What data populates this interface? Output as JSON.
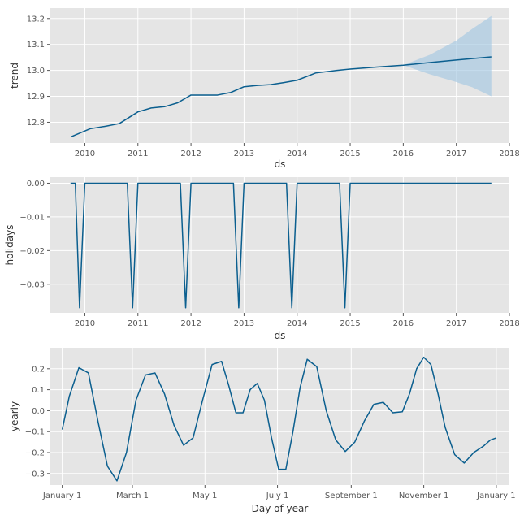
{
  "chart_data": [
    {
      "type": "line",
      "ylabel": "trend",
      "xlabel": "ds",
      "xlim": [
        2009.35,
        2018.0
      ],
      "ylim": [
        12.72,
        13.24
      ],
      "x_ticks": [
        2010,
        2011,
        2012,
        2013,
        2014,
        2015,
        2016,
        2017,
        2018
      ],
      "x_tick_labels": [
        "2010",
        "2011",
        "2012",
        "2013",
        "2014",
        "2015",
        "2016",
        "2017",
        "2018"
      ],
      "y_ticks": [
        12.8,
        12.9,
        13.0,
        13.1,
        13.2
      ],
      "y_tick_labels": [
        "12.8",
        "12.9",
        "13.0",
        "13.1",
        "13.2"
      ],
      "grid": true,
      "series": [
        {
          "x": [
            2009.75,
            2010.1,
            2010.4,
            2010.65,
            2011.0,
            2011.25,
            2011.5,
            2011.75,
            2012.0,
            2012.25,
            2012.5,
            2012.75,
            2013.0,
            2013.25,
            2013.5,
            2013.75,
            2014.0,
            2014.35,
            2014.75,
            2015.0,
            2015.5,
            2016.0,
            2016.5,
            2017.0,
            2017.66
          ],
          "values": [
            12.745,
            12.775,
            12.785,
            12.795,
            12.84,
            12.855,
            12.86,
            12.875,
            12.905,
            12.905,
            12.905,
            12.915,
            12.937,
            12.942,
            12.945,
            12.953,
            12.962,
            12.99,
            13.0,
            13.005,
            13.013,
            13.02,
            13.03,
            13.04,
            13.052
          ]
        }
      ],
      "uncertainty_band": {
        "x": [
          2016.0,
          2016.5,
          2017.0,
          2017.3,
          2017.66
        ],
        "lower": [
          13.02,
          12.985,
          12.955,
          12.935,
          12.9
        ],
        "upper": [
          13.02,
          13.06,
          13.115,
          13.16,
          13.21
        ]
      }
    },
    {
      "type": "line",
      "ylabel": "holidays",
      "xlabel": "ds",
      "xlim": [
        2009.35,
        2018.0
      ],
      "ylim": [
        -0.0385,
        0.0018
      ],
      "x_ticks": [
        2010,
        2011,
        2012,
        2013,
        2014,
        2015,
        2016,
        2017,
        2018
      ],
      "x_tick_labels": [
        "2010",
        "2011",
        "2012",
        "2013",
        "2014",
        "2015",
        "2016",
        "2017",
        "2018"
      ],
      "y_ticks": [
        0.0,
        -0.01,
        -0.02,
        -0.03
      ],
      "y_tick_labels": [
        "0.00",
        "−0.01",
        "−0.02",
        "−0.03"
      ],
      "grid": true,
      "series": [
        {
          "x": [
            2009.73,
            2009.82,
            2009.9,
            2010.0,
            2010.8,
            2010.9,
            2011.0,
            2011.8,
            2011.9,
            2012.0,
            2012.8,
            2012.9,
            2013.0,
            2013.8,
            2013.9,
            2014.0,
            2014.8,
            2014.9,
            2015.0,
            2017.66
          ],
          "values": [
            0.0,
            0.0,
            -0.037,
            0.0,
            0.0,
            -0.037,
            0.0,
            0.0,
            -0.037,
            0.0,
            0.0,
            -0.037,
            0.0,
            0.0,
            -0.037,
            0.0,
            0.0,
            -0.037,
            0.0,
            0.0
          ]
        }
      ]
    },
    {
      "type": "line",
      "ylabel": "yearly",
      "xlabel": "Day of year",
      "xlim": [
        -10,
        376
      ],
      "ylim": [
        -0.355,
        0.3
      ],
      "x_ticks": [
        0,
        59,
        120,
        181,
        243,
        304,
        365
      ],
      "x_tick_labels": [
        "January 1",
        "March 1",
        "May 1",
        "July 1",
        "September 1",
        "November 1",
        "January 1"
      ],
      "y_ticks": [
        0.2,
        0.1,
        0.0,
        -0.1,
        -0.2,
        -0.3
      ],
      "y_tick_labels": [
        "0.2",
        "0.1",
        "0.0",
        "−0.1",
        "−0.2",
        "−0.3"
      ],
      "grid": true,
      "series": [
        {
          "x": [
            0,
            6,
            14,
            22,
            30,
            38,
            46,
            54,
            62,
            70,
            78,
            86,
            94,
            102,
            110,
            118,
            126,
            134,
            140,
            146,
            152,
            158,
            164,
            170,
            176,
            182,
            188,
            194,
            200,
            206,
            214,
            222,
            230,
            238,
            246,
            254,
            262,
            270,
            278,
            286,
            292,
            298,
            304,
            310,
            316,
            322,
            330,
            338,
            346,
            354,
            360,
            365
          ],
          "values": [
            -0.09,
            0.07,
            0.205,
            0.18,
            -0.05,
            -0.265,
            -0.335,
            -0.2,
            0.05,
            0.17,
            0.18,
            0.08,
            -0.07,
            -0.165,
            -0.13,
            0.05,
            0.22,
            0.235,
            0.12,
            -0.01,
            -0.01,
            0.1,
            0.13,
            0.05,
            -0.13,
            -0.28,
            -0.28,
            -0.1,
            0.11,
            0.245,
            0.21,
            0.0,
            -0.14,
            -0.195,
            -0.15,
            -0.05,
            0.03,
            0.04,
            -0.01,
            -0.005,
            0.08,
            0.2,
            0.255,
            0.22,
            0.08,
            -0.08,
            -0.21,
            -0.25,
            -0.2,
            -0.17,
            -0.14,
            -0.13
          ]
        }
      ]
    }
  ],
  "colors": {
    "line": "#0b5f8f",
    "band": "#9ec5e1",
    "background": "#e5e5e5",
    "grid": "#ffffff"
  }
}
